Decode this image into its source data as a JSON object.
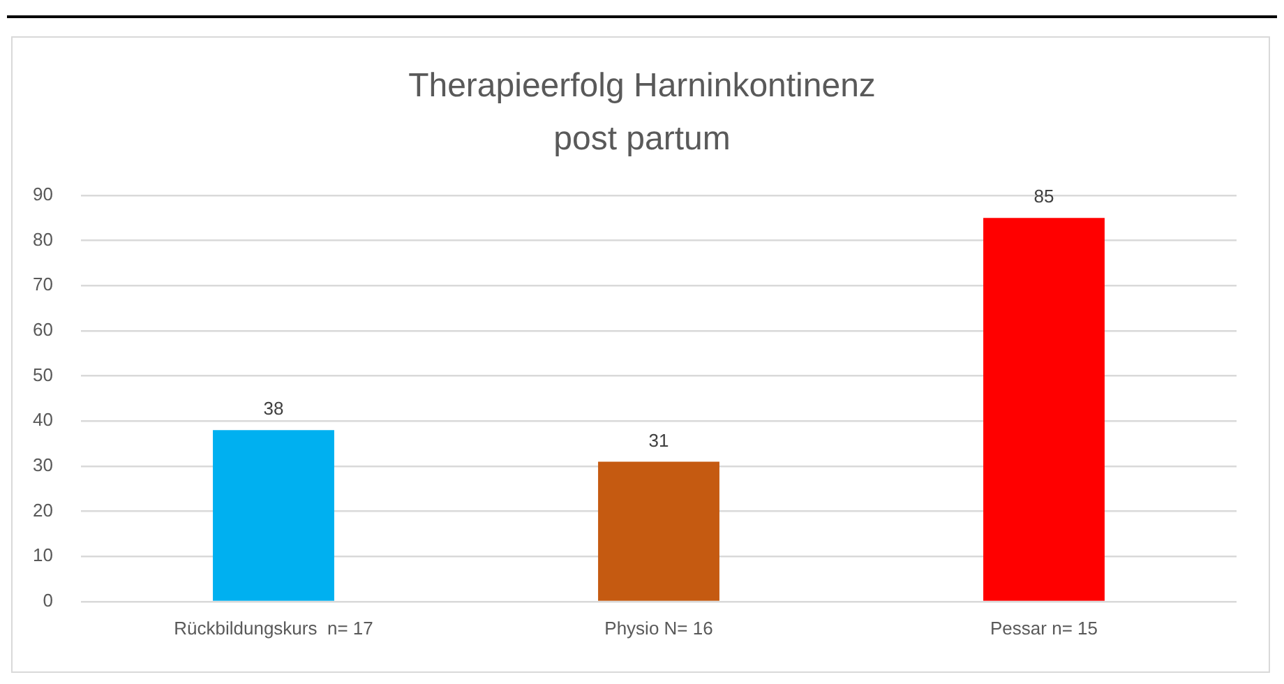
{
  "chart_data": {
    "type": "bar",
    "title": "Therapieerfolg Harninkontinenz post partum",
    "categories": [
      "Rückbildungskurs  n= 17",
      "Physio N= 16",
      "Pessar n= 15"
    ],
    "values": [
      38,
      31,
      85
    ],
    "colors": [
      "#00b0f0",
      "#c55a11",
      "#ff0000"
    ],
    "ylim": [
      0,
      90
    ],
    "yticks": [
      0,
      10,
      20,
      30,
      40,
      50,
      60,
      70,
      80,
      90
    ],
    "grid": "y",
    "data_labels": true
  }
}
